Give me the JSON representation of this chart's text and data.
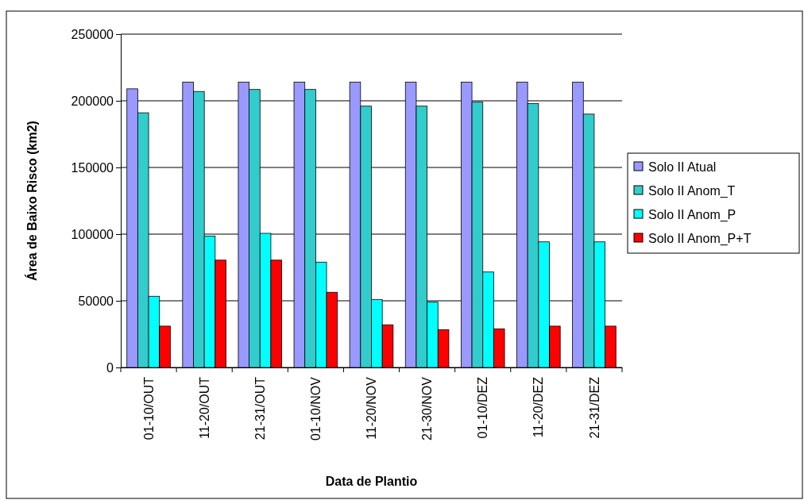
{
  "chart_data": {
    "type": "bar",
    "xlabel": "Data de Plantio",
    "ylabel": "Área de Baixo Risco (km2)",
    "categories": [
      "01-10/OUT",
      "11-20/OUT",
      "21-31/OUT",
      "01-10/NOV",
      "11-20/NOV",
      "21-30/NOV",
      "01-10/DEZ",
      "11-20/DEZ",
      "21-31/DEZ"
    ],
    "series": [
      {
        "name": "Solo II Atual",
        "color": "#9999ff",
        "values": [
          209000,
          214000,
          214000,
          214000,
          214000,
          214000,
          214000,
          214000,
          214000
        ]
      },
      {
        "name": "Solo II Anom_T",
        "color": "#33cccc",
        "values": [
          191000,
          207000,
          208500,
          208500,
          196000,
          196000,
          199000,
          198000,
          190000
        ]
      },
      {
        "name": "Solo II Anom_P",
        "color": "#00ffff",
        "values": [
          53400,
          98600,
          100600,
          79000,
          51000,
          49000,
          71600,
          94200,
          94200
        ]
      },
      {
        "name": "Solo II Anom_P+T",
        "color": "#ff0000",
        "values": [
          31000,
          80500,
          80500,
          56400,
          32000,
          28400,
          29000,
          31000,
          31000
        ]
      }
    ],
    "ylim": [
      0,
      250000
    ],
    "yticks": [
      0,
      50000,
      100000,
      150000,
      200000,
      250000
    ],
    "grid": "y",
    "legend": "right"
  }
}
